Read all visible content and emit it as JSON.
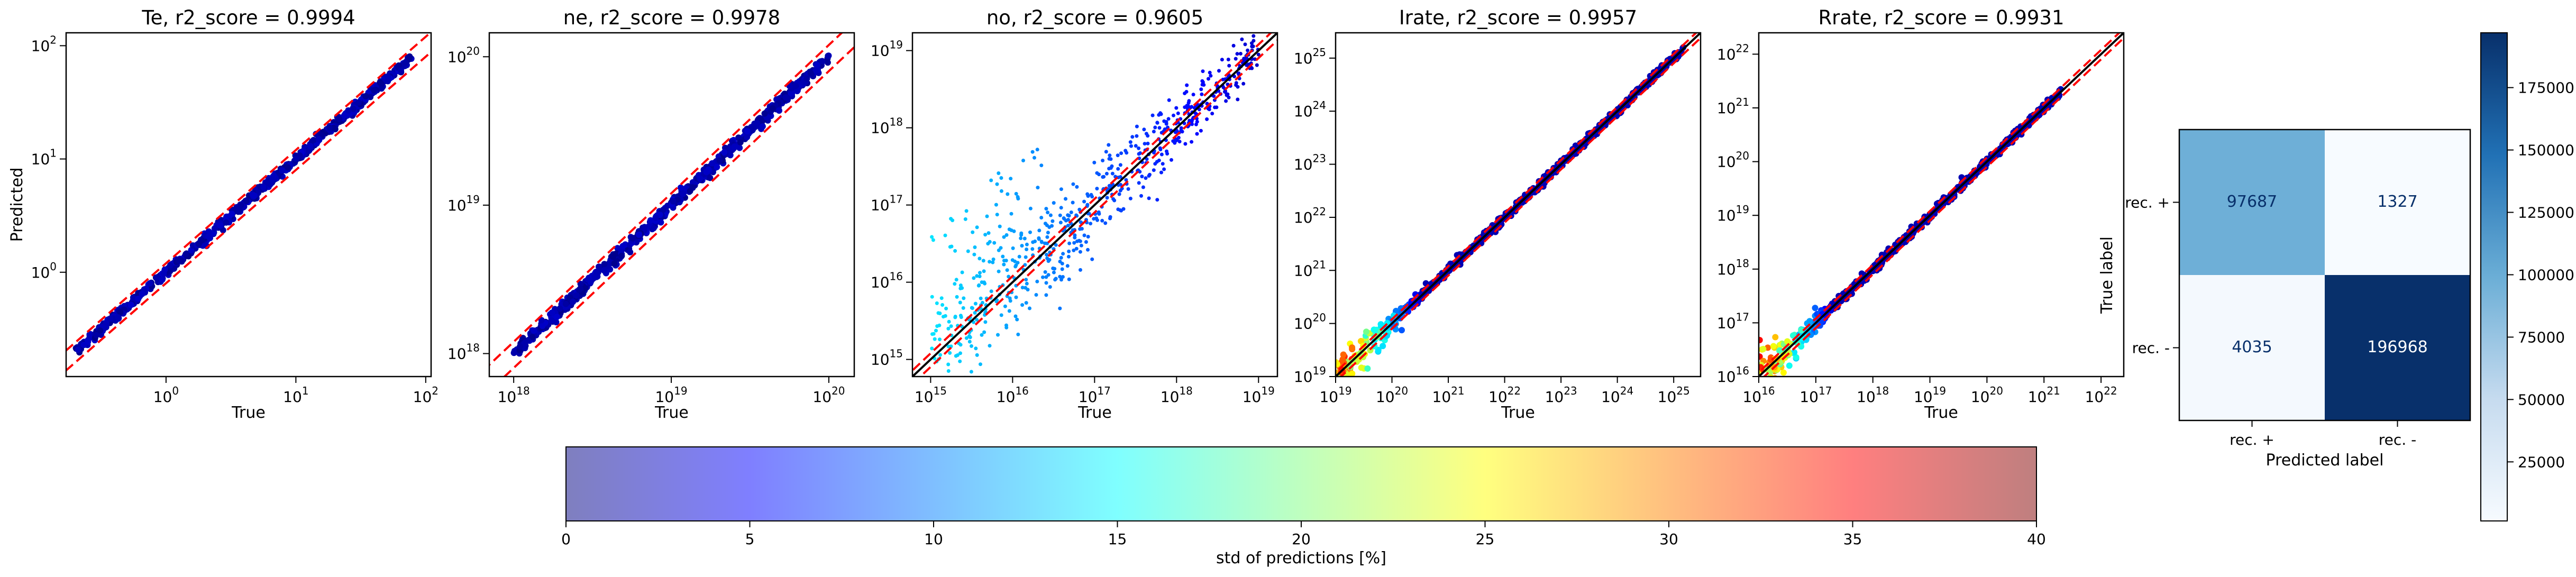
{
  "colors": {
    "point_cmap": [
      "#00007f",
      "#0000ff",
      "#007fff",
      "#00ffff",
      "#7fff7f",
      "#ffff00",
      "#ff7f00",
      "#ff0000",
      "#7f0000"
    ],
    "ideal_line": "#000000",
    "bounds_line": "#ff0000",
    "cm_cmap": [
      "#f7fbff",
      "#c6dbef",
      "#6baed6",
      "#2171b5",
      "#08306b"
    ]
  },
  "chart_data": [
    {
      "type": "scatter",
      "id": "Te",
      "title": "Te, r2_score = 0.9994",
      "xlabel": "True",
      "ylabel": "Predicted",
      "xscale": "log",
      "yscale": "log",
      "xlim": [
        0.17,
        110
      ],
      "ylim": [
        0.12,
        130
      ],
      "xticks": [
        {
          "v": 1,
          "base": "10",
          "exp": "0"
        },
        {
          "v": 10,
          "base": "10",
          "exp": "1"
        },
        {
          "v": 100,
          "base": "10",
          "exp": "2"
        }
      ],
      "yticks": [
        {
          "v": 1,
          "base": "10",
          "exp": "0"
        },
        {
          "v": 10,
          "base": "10",
          "exp": "1"
        },
        {
          "v": 100,
          "base": "10",
          "exp": "2"
        }
      ],
      "data_range": [
        0.2,
        80
      ],
      "spread_dex": 0.02,
      "std_range": [
        0.5,
        3
      ],
      "bounds_factor": 0.2,
      "ideal_line": false
    },
    {
      "type": "scatter",
      "id": "ne",
      "title": "ne, r2_score = 0.9978",
      "xlabel": "True",
      "ylabel": "",
      "xscale": "log",
      "yscale": "log",
      "xlim": [
        7e+17,
        1.45e+20
      ],
      "ylim": [
        7e+17,
        1.45e+20
      ],
      "xticks": [
        {
          "v": 1e+18,
          "base": "10",
          "exp": "18"
        },
        {
          "v": 1e+19,
          "base": "10",
          "exp": "19"
        },
        {
          "v": 1e+20,
          "base": "10",
          "exp": "20"
        }
      ],
      "yticks": [
        {
          "v": 1e+18,
          "base": "10",
          "exp": "18"
        },
        {
          "v": 1e+19,
          "base": "10",
          "exp": "19"
        },
        {
          "v": 1e+20,
          "base": "10",
          "exp": "20"
        }
      ],
      "data_range": [
        1e+18,
        1e+20
      ],
      "spread_dex": 0.02,
      "std_range": [
        0.5,
        3
      ],
      "bounds_factor": 0.2,
      "ideal_line": false
    },
    {
      "type": "scatter",
      "id": "no",
      "title": "no, r2_score = 0.9605",
      "xlabel": "True",
      "ylabel": "",
      "xscale": "log",
      "yscale": "log",
      "xlim": [
        600000000000000.0,
        1.7e+19
      ],
      "ylim": [
        600000000000000.0,
        1.7e+19
      ],
      "xticks": [
        {
          "v": 1000000000000000.0,
          "base": "10",
          "exp": "15"
        },
        {
          "v": 1e+16,
          "base": "10",
          "exp": "16"
        },
        {
          "v": 1e+17,
          "base": "10",
          "exp": "17"
        },
        {
          "v": 1e+18,
          "base": "10",
          "exp": "18"
        },
        {
          "v": 1e+19,
          "base": "10",
          "exp": "19"
        }
      ],
      "yticks": [
        {
          "v": 1000000000000000.0,
          "base": "10",
          "exp": "15"
        },
        {
          "v": 1e+16,
          "base": "10",
          "exp": "16"
        },
        {
          "v": 1e+17,
          "base": "10",
          "exp": "17"
        },
        {
          "v": 1e+18,
          "base": "10",
          "exp": "18"
        },
        {
          "v": 1e+19,
          "base": "10",
          "exp": "19"
        }
      ],
      "data_range": [
        1000000000000000.0,
        1e+19
      ],
      "spread_dex": 0.25,
      "std_range": [
        3,
        14
      ],
      "bounds_factor": 0.2,
      "ideal_line": true
    },
    {
      "type": "scatter",
      "id": "Irate",
      "title": "Irate, r2_score = 0.9957",
      "xlabel": "True",
      "ylabel": "",
      "xscale": "log",
      "yscale": "log",
      "xlim": [
        1e+19,
        3e+25
      ],
      "ylim": [
        1e+19,
        3e+25
      ],
      "xticks": [
        {
          "v": 1e+19,
          "base": "10",
          "exp": "19"
        },
        {
          "v": 1e+20,
          "base": "10",
          "exp": "20"
        },
        {
          "v": 1e+21,
          "base": "10",
          "exp": "21"
        },
        {
          "v": 1e+22,
          "base": "10",
          "exp": "22"
        },
        {
          "v": 1e+23,
          "base": "10",
          "exp": "23"
        },
        {
          "v": 1e+24,
          "base": "10",
          "exp": "24"
        },
        {
          "v": 1e+25,
          "base": "10",
          "exp": "25"
        }
      ],
      "yticks": [
        {
          "v": 1e+19,
          "base": "10",
          "exp": "19"
        },
        {
          "v": 1e+20,
          "base": "10",
          "exp": "20"
        },
        {
          "v": 1e+21,
          "base": "10",
          "exp": "21"
        },
        {
          "v": 1e+22,
          "base": "10",
          "exp": "22"
        },
        {
          "v": 1e+23,
          "base": "10",
          "exp": "23"
        },
        {
          "v": 1e+24,
          "base": "10",
          "exp": "24"
        },
        {
          "v": 1e+25,
          "base": "10",
          "exp": "25"
        }
      ],
      "data_range": [
        1e+19,
        1.5e+25
      ],
      "spread_dex": 0.04,
      "std_range": [
        2,
        38
      ],
      "bounds_factor": 0.2,
      "ideal_line": true
    },
    {
      "type": "scatter",
      "id": "Rrate",
      "title": "Rrate, r2_score = 0.9931",
      "xlabel": "True",
      "ylabel": "",
      "xscale": "log",
      "yscale": "log",
      "xlim": [
        1e+16,
        2.5e+22
      ],
      "ylim": [
        1e+16,
        2.5e+22
      ],
      "xticks": [
        {
          "v": 1e+16,
          "base": "10",
          "exp": "16"
        },
        {
          "v": 1e+17,
          "base": "10",
          "exp": "17"
        },
        {
          "v": 1e+18,
          "base": "10",
          "exp": "18"
        },
        {
          "v": 1e+19,
          "base": "10",
          "exp": "19"
        },
        {
          "v": 1e+20,
          "base": "10",
          "exp": "20"
        },
        {
          "v": 1e+21,
          "base": "10",
          "exp": "21"
        },
        {
          "v": 1e+22,
          "base": "10",
          "exp": "22"
        }
      ],
      "yticks": [
        {
          "v": 1e+16,
          "base": "10",
          "exp": "16"
        },
        {
          "v": 1e+17,
          "base": "10",
          "exp": "17"
        },
        {
          "v": 1e+18,
          "base": "10",
          "exp": "18"
        },
        {
          "v": 1e+19,
          "base": "10",
          "exp": "19"
        },
        {
          "v": 1e+20,
          "base": "10",
          "exp": "20"
        },
        {
          "v": 1e+21,
          "base": "10",
          "exp": "21"
        },
        {
          "v": 1e+22,
          "base": "10",
          "exp": "22"
        }
      ],
      "data_range": [
        1e+16,
        2e+21
      ],
      "spread_dex": 0.04,
      "std_range": [
        2,
        38
      ],
      "bounds_factor": 0.2,
      "ideal_line": true
    },
    {
      "type": "heatmap",
      "id": "confusion_matrix",
      "title": "",
      "xlabel": "Predicted label",
      "ylabel": "True label",
      "x_categories": [
        "rec. +",
        "rec. -"
      ],
      "y_categories": [
        "rec. +",
        "rec. -"
      ],
      "values": [
        [
          97687,
          1327
        ],
        [
          4035,
          196968
        ]
      ],
      "colorbar": {
        "range": [
          1327,
          196968
        ],
        "ticks": [
          {
            "v": 25000,
            "label": "25000"
          },
          {
            "v": 50000,
            "label": "50000"
          },
          {
            "v": 75000,
            "label": "75000"
          },
          {
            "v": 100000,
            "label": "100000"
          },
          {
            "v": 125000,
            "label": "125000"
          },
          {
            "v": 150000,
            "label": "150000"
          },
          {
            "v": 175000,
            "label": "175000"
          }
        ]
      }
    },
    {
      "type": "colorbar",
      "id": "std_colorbar",
      "label": "std of predictions [%]",
      "range": [
        0,
        40
      ],
      "ticks": [
        {
          "v": 0,
          "label": "0"
        },
        {
          "v": 5,
          "label": "5"
        },
        {
          "v": 10,
          "label": "10"
        },
        {
          "v": 15,
          "label": "15"
        },
        {
          "v": 20,
          "label": "20"
        },
        {
          "v": 25,
          "label": "25"
        },
        {
          "v": 30,
          "label": "30"
        },
        {
          "v": 35,
          "label": "35"
        },
        {
          "v": 40,
          "label": "40"
        }
      ]
    }
  ]
}
